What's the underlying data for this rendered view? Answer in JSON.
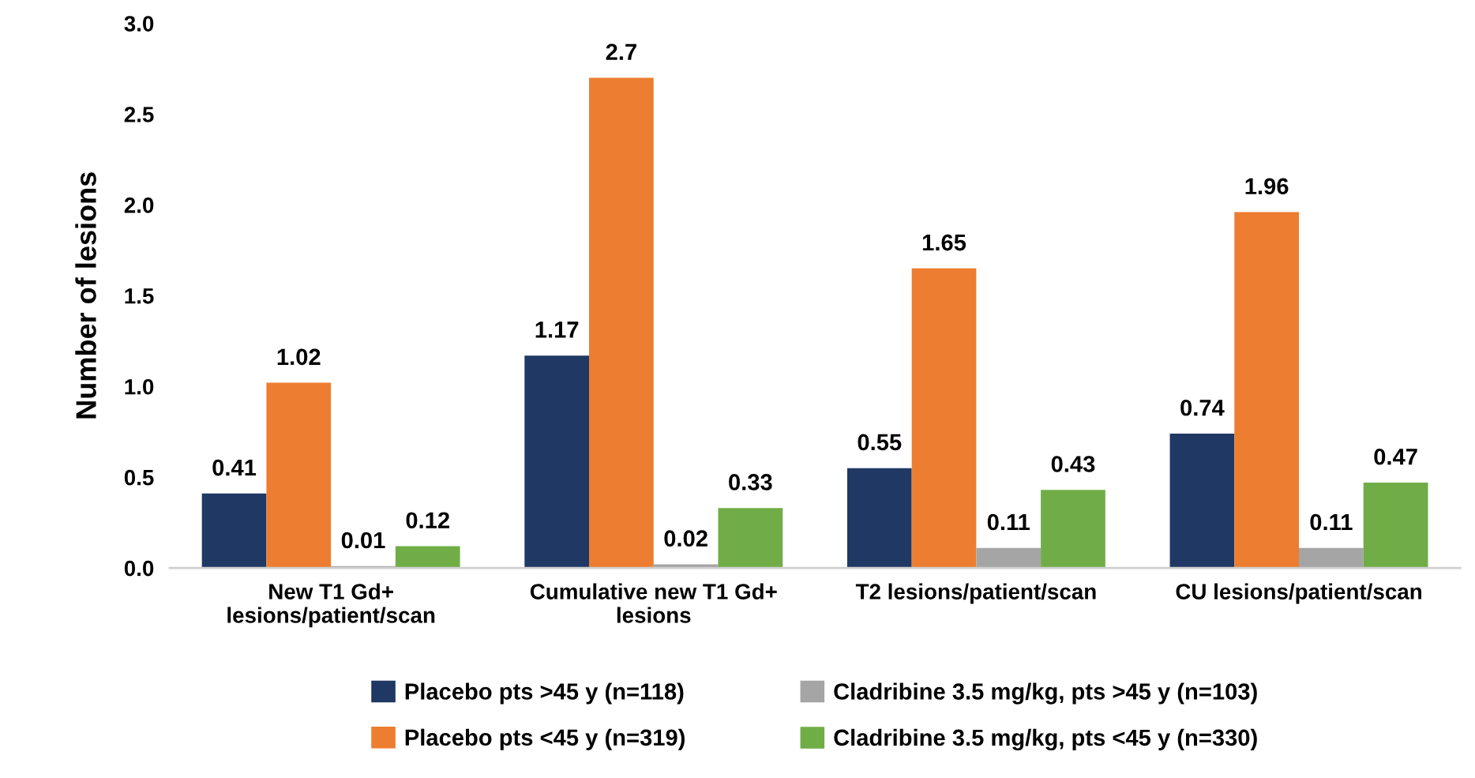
{
  "chart_data": {
    "type": "bar",
    "ylabel": "Number of lesions",
    "categories": [
      "New T1 Gd+\nlesions/patient/scan",
      "Cumulative new T1 Gd+\nlesions",
      "T2 lesions/patient/scan",
      "CU lesions/patient/scan"
    ],
    "series": [
      {
        "name": "Placebo pts >45 y (n=118)",
        "color": "#203864",
        "values": [
          0.41,
          1.17,
          0.55,
          0.74
        ]
      },
      {
        "name": "Placebo pts <45 y (n=319)",
        "color": "#ed7d31",
        "values": [
          1.02,
          2.7,
          1.65,
          1.96
        ]
      },
      {
        "name": "Cladribine 3.5 mg/kg, pts >45 y (n=103)",
        "color": "#a5a5a5",
        "values": [
          0.01,
          0.02,
          0.11,
          0.11
        ]
      },
      {
        "name": "Cladribine 3.5 mg/kg, pts <45 y (n=330)",
        "color": "#70ad47",
        "values": [
          0.12,
          0.33,
          0.43,
          0.47
        ]
      }
    ],
    "ylim": [
      0,
      3.0
    ],
    "yticks": [
      {
        "value": 0,
        "label": "0.0"
      },
      {
        "value": 0.5,
        "label": "0.5"
      },
      {
        "value": 1,
        "label": "1.0"
      },
      {
        "value": 1.5,
        "label": "1.5"
      },
      {
        "value": 2,
        "label": "2.0"
      },
      {
        "value": 2.5,
        "label": "2.5"
      },
      {
        "value": 3,
        "label": "3.0"
      }
    ],
    "data_labels": true,
    "grid": false,
    "legend": "bottom"
  }
}
